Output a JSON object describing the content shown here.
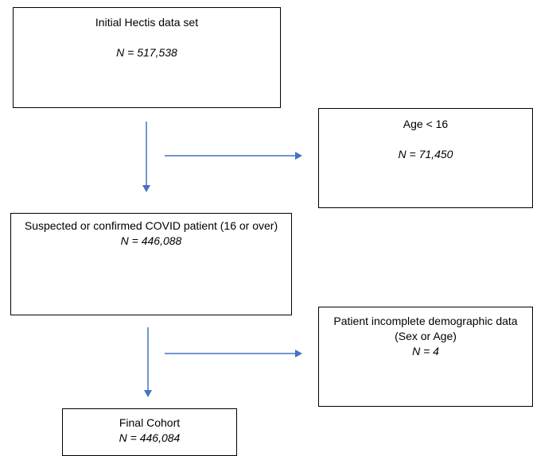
{
  "flowchart": {
    "initial": {
      "title": "Initial Hectis data set",
      "n": "N = 517,538"
    },
    "excluded_age": {
      "title": "Age < 16",
      "n": "N = 71,450"
    },
    "suspected": {
      "title": "Suspected or confirmed COVID patient (16 or over)",
      "n": "N = 446,088"
    },
    "excluded_incomplete": {
      "title": "Patient incomplete demographic data (Sex or Age)",
      "n": "N = 4"
    },
    "final": {
      "title": "Final Cohort",
      "n": "N = 446,084"
    }
  },
  "colors": {
    "arrow": "#4472c4",
    "box_border": "#000000"
  }
}
